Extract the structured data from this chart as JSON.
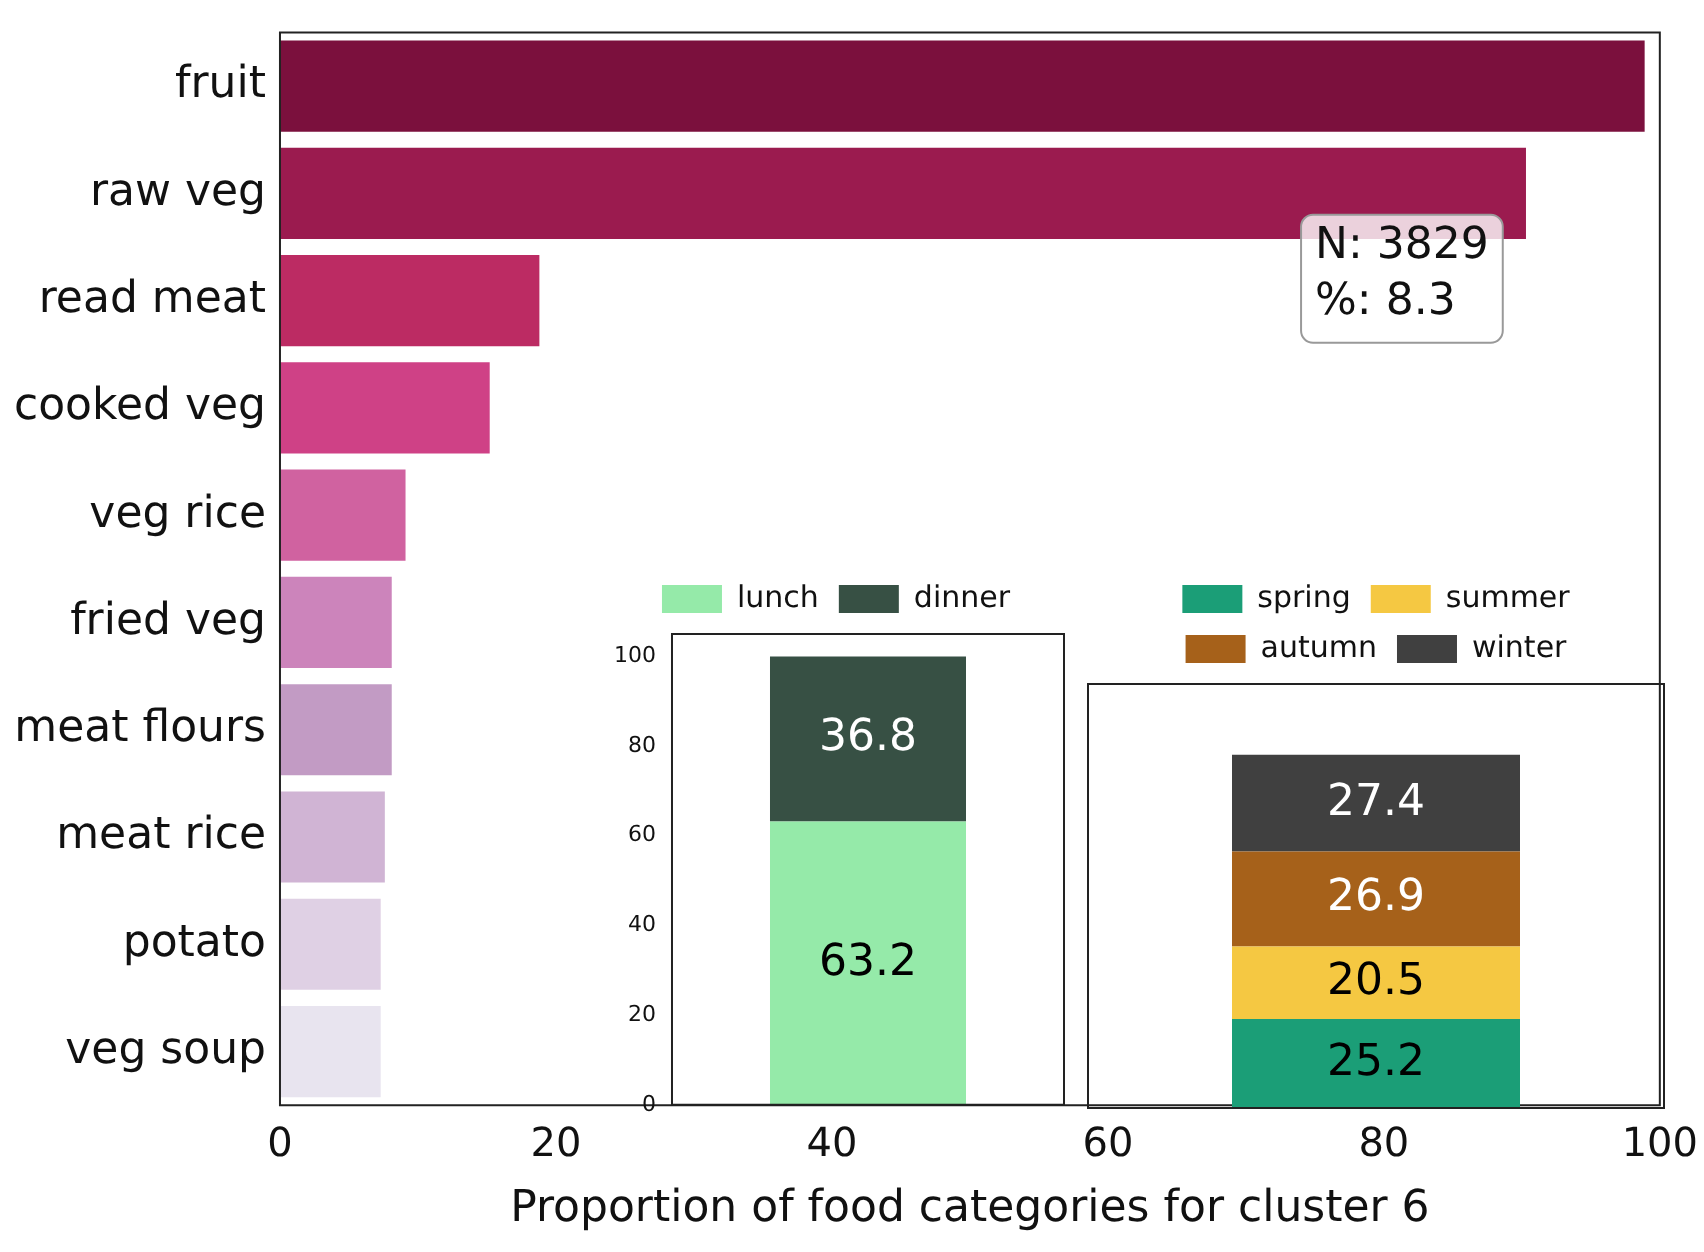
{
  "chart_data": [
    {
      "type": "bar",
      "orientation": "horizontal",
      "xlabel": "Proportion of food categories for cluster 6",
      "categories": [
        "fruit",
        "raw veg",
        "read meat",
        "cooked veg",
        "veg rice",
        "fried veg",
        "meat flours",
        "meat rice",
        "potato",
        "veg soup"
      ],
      "values": [
        98.9,
        90.3,
        18.8,
        15.2,
        9.1,
        8.1,
        8.1,
        7.6,
        7.3,
        7.3
      ],
      "colors": [
        "#7b103d",
        "#9b1b4f",
        "#bc2b63",
        "#cf4186",
        "#d062a0",
        "#cc84bb",
        "#c29bc4",
        "#d0b4d4",
        "#dfd0e4",
        "#e8e4ef"
      ],
      "xlim": [
        0,
        100
      ],
      "xticks": [
        0,
        20,
        40,
        60,
        80,
        100
      ],
      "grid": false,
      "legend": false,
      "annotations": [
        "N: 3829",
        "%: 8.3"
      ]
    },
    {
      "type": "bar",
      "stacked": true,
      "categories": [
        null
      ],
      "data_labels": true,
      "legend": "top",
      "grid": false,
      "ylim": [
        0,
        105
      ],
      "yticks": [
        0,
        20,
        40,
        60,
        80,
        100
      ],
      "tick_labels": "y",
      "series": [
        {
          "name": "lunch",
          "color": "#95eaa9",
          "values": [
            63.2
          ]
        },
        {
          "name": "dinner",
          "color": "#375044",
          "values": [
            36.8
          ]
        }
      ]
    },
    {
      "type": "bar",
      "stacked": true,
      "categories": [
        null
      ],
      "data_labels": true,
      "legend": "top",
      "grid": false,
      "tick_labels": false,
      "series": [
        {
          "name": "spring",
          "color": "#1b9e77",
          "values": [
            25.2
          ]
        },
        {
          "name": "summer",
          "color": "#f5c842",
          "values": [
            20.5
          ]
        },
        {
          "name": "autumn",
          "color": "#a6611a",
          "values": [
            26.9
          ]
        },
        {
          "name": "winter",
          "color": "#404040",
          "values": [
            27.4
          ]
        }
      ]
    }
  ]
}
